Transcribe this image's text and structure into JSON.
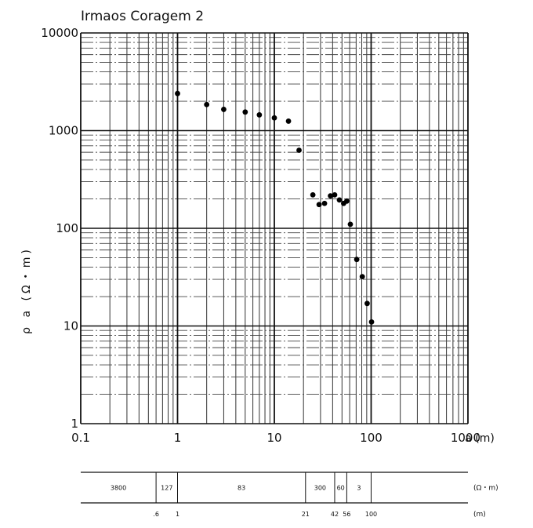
{
  "chart_data": {
    "type": "scatter",
    "title": "Irmaos Coragem 2",
    "xlabel": "a (m)",
    "ylabel": "ρ a (Ω・m)",
    "xscale": "log",
    "yscale": "log",
    "xlim": [
      0.1,
      1000
    ],
    "ylim": [
      1,
      10000
    ],
    "grid": true,
    "x_tick_labels": [
      "0.1",
      "1",
      "10",
      "100",
      "1000"
    ],
    "y_tick_labels": [
      "1",
      "10",
      "100",
      "1000",
      "10000"
    ],
    "x": [
      1,
      2,
      3,
      5,
      7,
      10,
      14,
      18,
      25,
      29,
      33,
      38,
      42,
      47,
      52,
      56,
      61,
      71,
      81,
      91,
      101
    ],
    "y": [
      2400,
      1850,
      1650,
      1550,
      1450,
      1350,
      1250,
      630,
      220,
      175,
      180,
      215,
      220,
      195,
      180,
      190,
      110,
      48,
      32,
      17,
      11
    ]
  },
  "layer_strip": {
    "resistivity_unit": "(Ω・m)",
    "depth_unit": "(m)",
    "resistivities": [
      "3800",
      "127",
      "83",
      "300",
      "60",
      "3"
    ],
    "boundaries": [
      0.6,
      1,
      21,
      42,
      56,
      100
    ],
    "boundary_labels": [
      ".6",
      "1",
      "21",
      "42",
      "56",
      "100"
    ]
  }
}
